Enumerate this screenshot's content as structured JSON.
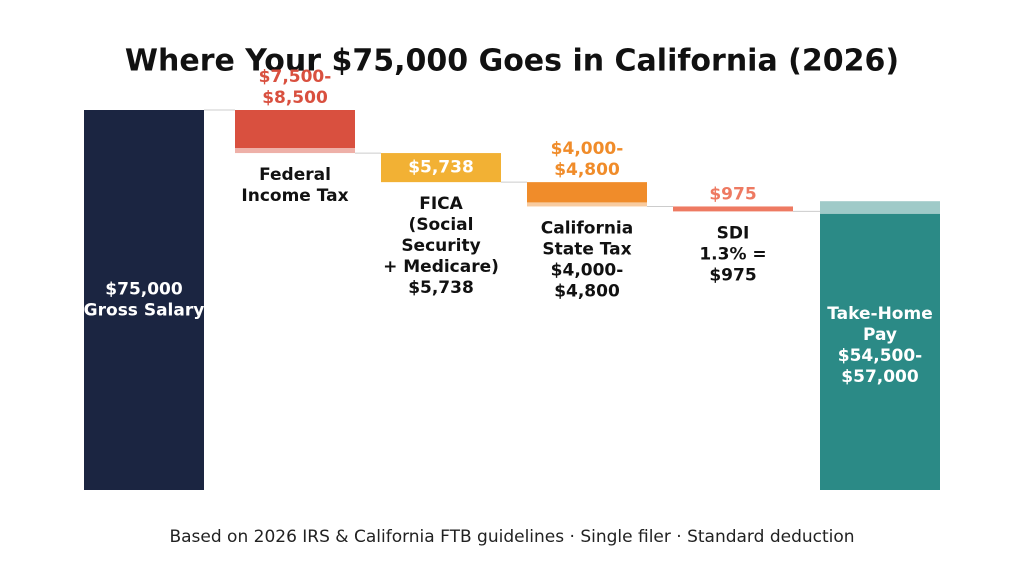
{
  "chart_data": {
    "type": "waterfall",
    "title": "Where Your $75,000 Goes in California (2026)",
    "steps": [
      {
        "kind": "total",
        "values": [
          75000
        ],
        "color": "#1b2541",
        "text_lines": [
          "$75,000",
          "Gross Salary"
        ]
      },
      {
        "kind": "decrease",
        "values": [
          7500,
          8500
        ],
        "color": "#d9503f",
        "value_lines": [
          "$7,500-",
          "$8,500"
        ],
        "text_lines": [
          "Federal",
          "Income Tax"
        ]
      },
      {
        "kind": "decrease",
        "values": [
          5738
        ],
        "color": "#f2b134",
        "value_lines": [
          "$5,738"
        ],
        "text_lines": [
          "FICA",
          "(Social",
          "Security",
          "+ Medicare)",
          "$5,738"
        ]
      },
      {
        "kind": "decrease",
        "values": [
          4000,
          4800
        ],
        "color": "#f08c2a",
        "value_lines": [
          "$4,000-",
          "$4,800"
        ],
        "text_lines": [
          "California",
          "State Tax",
          "$4,000-",
          "$4,800"
        ]
      },
      {
        "kind": "decrease",
        "values": [
          975
        ],
        "color": "#ee7a62",
        "value_lines": [
          "$975"
        ],
        "text_lines": [
          "SDI",
          "1.3% =",
          "$975"
        ]
      },
      {
        "kind": "result",
        "values": [
          54500,
          57000
        ],
        "color": "#2b8a86",
        "text_lines": [
          "Take-Home",
          "Pay",
          "$54,500-",
          "$57,000"
        ]
      }
    ],
    "footnote": "Based on 2026 IRS & California FTB guidelines · Single filer · Standard deduction"
  }
}
